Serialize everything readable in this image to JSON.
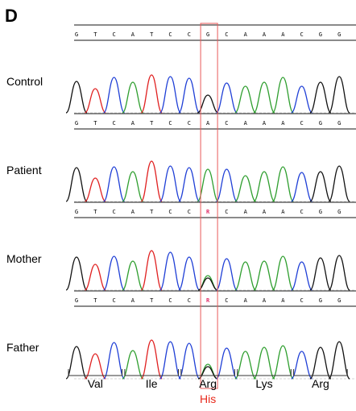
{
  "panel_letter": "D",
  "tracks": [
    {
      "label": "Control",
      "bases": [
        "G",
        "T",
        "C",
        "A",
        "T",
        "C",
        "C",
        "G",
        "C",
        "A",
        "A",
        "A",
        "C",
        "G",
        "G"
      ],
      "heterozygous": false
    },
    {
      "label": "Patient",
      "bases": [
        "G",
        "T",
        "C",
        "A",
        "T",
        "C",
        "C",
        "A",
        "C",
        "A",
        "A",
        "A",
        "C",
        "G",
        "G"
      ],
      "heterozygous": false
    },
    {
      "label": "Mother",
      "bases": [
        "G",
        "T",
        "C",
        "A",
        "T",
        "C",
        "C",
        "R",
        "C",
        "A",
        "A",
        "A",
        "C",
        "G",
        "G"
      ],
      "heterozygous": true
    },
    {
      "label": "Father",
      "bases": [
        "G",
        "T",
        "C",
        "A",
        "T",
        "C",
        "C",
        "R",
        "C",
        "A",
        "A",
        "A",
        "C",
        "G",
        "G"
      ],
      "heterozygous": true
    }
  ],
  "mutation_base_index": 7,
  "codons": [
    "Val",
    "Ile",
    "Arg",
    "Lys",
    "Arg"
  ],
  "mutant_codon_index": 2,
  "mutant_amino_acid": "His",
  "colors": {
    "A": "#2e9e2e",
    "C": "#1f3fd6",
    "G": "#111111",
    "T": "#e02020",
    "mutation_text": "#e8291c",
    "mutation_box": "#e85a5a"
  }
}
